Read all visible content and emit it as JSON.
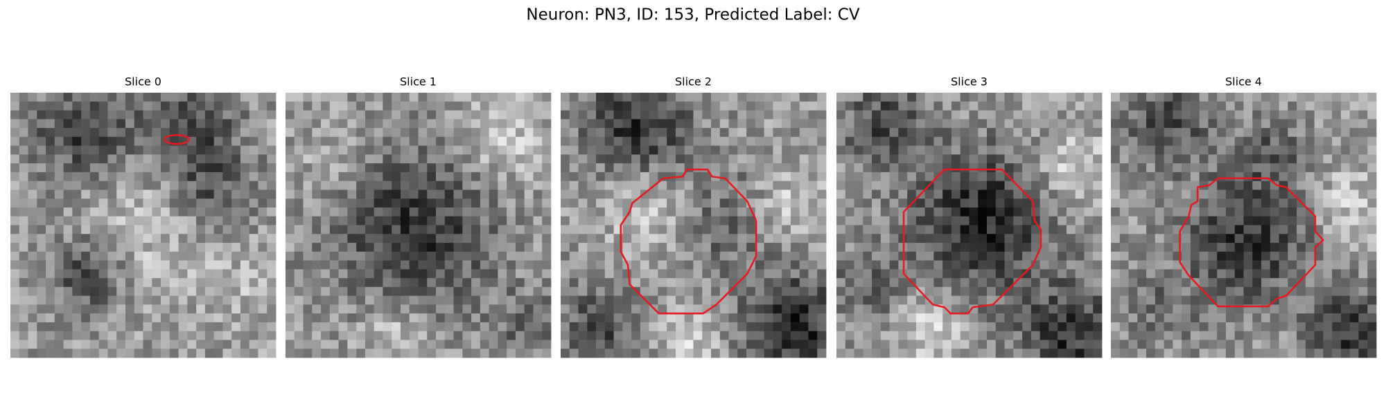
{
  "title": "Neuron: PN3, ID: 153, Predicted Label: CV",
  "panels": [
    {
      "title": "Slice 0"
    },
    {
      "title": "Slice 1"
    },
    {
      "title": "Slice 2"
    },
    {
      "title": "Slice 3"
    },
    {
      "title": "Slice 4"
    }
  ]
}
